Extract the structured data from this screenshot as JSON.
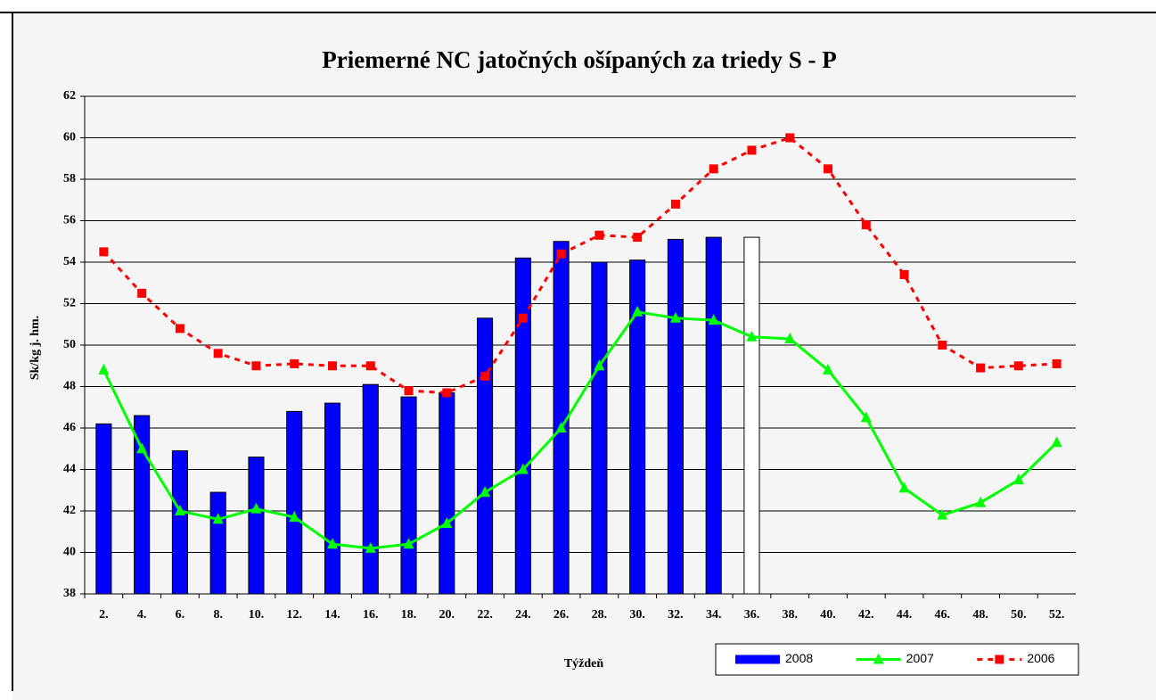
{
  "chart_data": {
    "type": "bar-line",
    "title": "Priemerné NC jatočných ošípaných za triedy S - P",
    "x_label": "Týždeň",
    "y_label": "Sk/kg j. hm.",
    "categories": [
      "2.",
      "4.",
      "6.",
      "8.",
      "10.",
      "12.",
      "14.",
      "16.",
      "18.",
      "20.",
      "22.",
      "24.",
      "26.",
      "28.",
      "30.",
      "32.",
      "34.",
      "36.",
      "38.",
      "40.",
      "42.",
      "44.",
      "46.",
      "48.",
      "50.",
      "52."
    ],
    "series": [
      {
        "name": "2008",
        "type": "bar",
        "color": "#0000ff",
        "point_colors": [
          null,
          null,
          null,
          null,
          null,
          null,
          null,
          null,
          null,
          null,
          null,
          null,
          null,
          null,
          null,
          null,
          null,
          "#ffffff",
          null,
          null,
          null,
          null,
          null,
          null,
          null,
          null
        ],
        "values": [
          46.2,
          46.6,
          44.9,
          42.9,
          44.6,
          46.8,
          47.2,
          48.1,
          47.5,
          47.7,
          51.3,
          54.2,
          55.0,
          54.0,
          54.1,
          55.1,
          55.2,
          55.2,
          null,
          null,
          null,
          null,
          null,
          null,
          null,
          null
        ]
      },
      {
        "name": "2007",
        "type": "line",
        "color": "#00ff00",
        "marker": "triangle",
        "dash": false,
        "values": [
          48.8,
          45.0,
          42.0,
          41.6,
          42.1,
          41.7,
          40.4,
          40.2,
          40.4,
          41.4,
          42.9,
          44.0,
          46.0,
          49.0,
          51.6,
          51.3,
          51.2,
          50.4,
          50.3,
          48.8,
          46.5,
          43.1,
          41.8,
          42.4,
          43.5,
          45.3
        ]
      },
      {
        "name": "2006",
        "type": "line",
        "color": "#ff0000",
        "marker": "square",
        "dash": true,
        "values": [
          54.5,
          52.5,
          50.8,
          49.6,
          49.0,
          49.1,
          49.0,
          49.0,
          47.8,
          47.7,
          48.5,
          51.3,
          54.4,
          55.3,
          55.2,
          56.8,
          58.5,
          59.4,
          60.0,
          58.5,
          55.8,
          53.4,
          50.0,
          48.9,
          49.0,
          49.1
        ]
      }
    ],
    "ylim": [
      38,
      62
    ],
    "yticks": [
      38,
      40,
      42,
      44,
      46,
      48,
      50,
      52,
      54,
      56,
      58,
      60,
      62
    ],
    "grid": true,
    "legend": "bottom-right"
  }
}
